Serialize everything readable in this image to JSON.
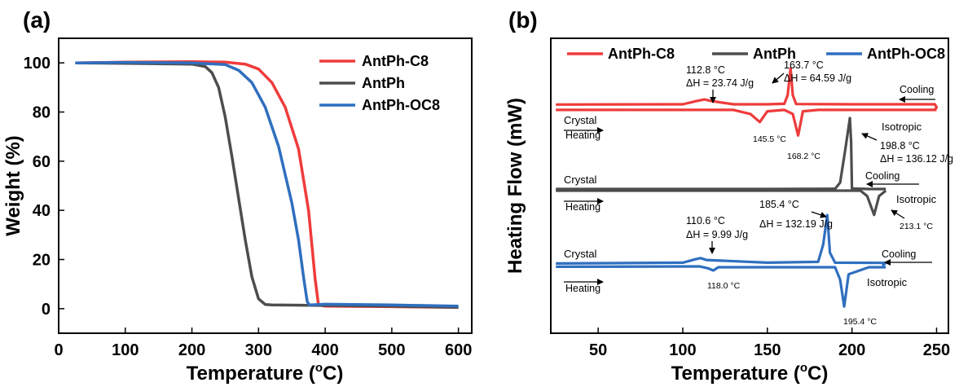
{
  "panels": {
    "a": {
      "label": "(a)"
    },
    "b": {
      "label": "(b)"
    }
  },
  "chart_data": [
    {
      "type": "line",
      "panel": "(a)",
      "xlabel": "Temperature (°C)",
      "ylabel": "Weight (%)",
      "xlim": [
        0,
        620
      ],
      "ylim": [
        -10,
        110
      ],
      "xticks": [
        0,
        100,
        200,
        300,
        400,
        500,
        600
      ],
      "yticks": [
        0,
        20,
        40,
        60,
        80,
        100
      ],
      "legend_position": "top-right",
      "series": [
        {
          "name": "AntPh-C8",
          "color": "#ef3b3b",
          "x": [
            25,
            100,
            200,
            250,
            280,
            300,
            320,
            340,
            360,
            375,
            385,
            390,
            400,
            500,
            600
          ],
          "y": [
            100,
            100.3,
            100.5,
            100.3,
            99.5,
            97.5,
            92,
            82,
            65,
            40,
            12,
            1.5,
            1.0,
            0.8,
            0.5
          ]
        },
        {
          "name": "AntPh",
          "color": "#4d4d4d",
          "x": [
            25,
            100,
            200,
            220,
            230,
            240,
            250,
            260,
            270,
            280,
            290,
            300,
            310,
            320,
            400,
            500,
            600
          ],
          "y": [
            100,
            99.8,
            99.5,
            98.5,
            96,
            90,
            78,
            62,
            45,
            28,
            13,
            4,
            1.7,
            1.5,
            1.3,
            1.0,
            0.5
          ]
        },
        {
          "name": "AntPh-OC8",
          "color": "#2f6fbf",
          "x": [
            25,
            100,
            200,
            250,
            270,
            290,
            310,
            330,
            350,
            360,
            368,
            373,
            376,
            400,
            500,
            600
          ],
          "y": [
            100,
            100.2,
            100,
            99.3,
            97,
            92,
            82,
            66,
            43,
            28,
            12,
            3,
            1.5,
            1.8,
            1.5,
            1.0
          ]
        }
      ]
    },
    {
      "type": "line",
      "panel": "(b)",
      "xlabel": "Temperature (°C)",
      "ylabel": "Heating Flow (mW)",
      "xlim": [
        22,
        257
      ],
      "xticks": [
        50,
        100,
        150,
        200,
        250
      ],
      "yticks": [],
      "legend_position": "top",
      "series": [
        {
          "name": "AntPh-C8",
          "color": "#ef3b3b",
          "cooling": {
            "x": [
              25,
              100,
              108,
              112.8,
              117,
              130,
              150,
              160,
              162,
              163.7,
              165,
              167,
              200,
              240,
              249,
              250,
              249
            ],
            "y": [
              0.5,
              0.6,
              1.8,
              2.4,
              1.8,
              0.6,
              0.6,
              0.8,
              4,
              14,
              4,
              0.7,
              0.6,
              0.6,
              0.6,
              -0.5,
              -1.5
            ]
          },
          "heating": {
            "x": [
              25,
              130,
              140,
              145.5,
              150,
              160,
              165,
              168.2,
              171,
              180,
              250
            ],
            "y": [
              -1.5,
              -1.5,
              -3,
              -6,
              -2,
              -1.5,
              -3,
              -11,
              -2,
              -1.5,
              -1.5
            ]
          }
        },
        {
          "name": "AntPh",
          "color": "#4d4d4d",
          "cooling": {
            "x": [
              25,
              150,
              190,
              193,
              196,
              198.8,
              199.5,
              200,
              210,
              220
            ],
            "y": [
              0.6,
              0.6,
              0.7,
              3,
              15,
              27,
              18,
              0.8,
              0.6,
              0.6
            ]
          },
          "heating": {
            "x": [
              25,
              150,
              205,
              209,
              213.1,
              216,
              220
            ],
            "y": [
              0,
              0,
              0,
              -2,
              -9,
              -2,
              0
            ]
          }
        },
        {
          "name": "AntPh-OC8",
          "color": "#2f6fbf",
          "cooling": {
            "x": [
              25,
              100,
              107,
              110.6,
              114,
              150,
              180,
              183,
              185.4,
              187,
              190,
              220,
              218
            ],
            "y": [
              2,
              2.3,
              3.5,
              4,
              3.3,
              2.3,
              2.6,
              9,
              20,
              6,
              2.3,
              2.2,
              1.2
            ]
          },
          "heating": {
            "x": [
              25,
              110,
              115,
              118.0,
              121,
              190,
              193,
              195.4,
              198,
              210,
              220
            ],
            "y": [
              0.8,
              0.9,
              0.2,
              -0.6,
              0.6,
              0.6,
              -4,
              -14,
              -2,
              0.6,
              0.6
            ]
          }
        }
      ],
      "annotations": {
        "crystal": "Crystal",
        "isotropic": "Isotropic",
        "heating": "Heating",
        "cooling": "Cooling",
        "c8_exo_temp": "112.8 °C",
        "c8_exo_dh": "ΔH = 23.74 J/g",
        "c8_peak_temp": "163.7 °C",
        "c8_peak_dh": "ΔH = 64.59 J/g",
        "c8_endo1": "145.5 °C",
        "c8_endo2": "168.2 °C",
        "ph_peak_temp": "198.8 °C",
        "ph_peak_dh": "ΔH = 136.12 J/g",
        "ph_endo": "213.1 °C",
        "oc8_peak_temp": "185.4 °C",
        "oc8_peak_dh": "ΔH = 132.19 J/g",
        "oc8_exo_temp": "110.6 °C",
        "oc8_exo_dh": "ΔH = 9.99 J/g",
        "oc8_endo1": "118.0 °C",
        "oc8_endo2": "195.4 °C"
      }
    }
  ]
}
